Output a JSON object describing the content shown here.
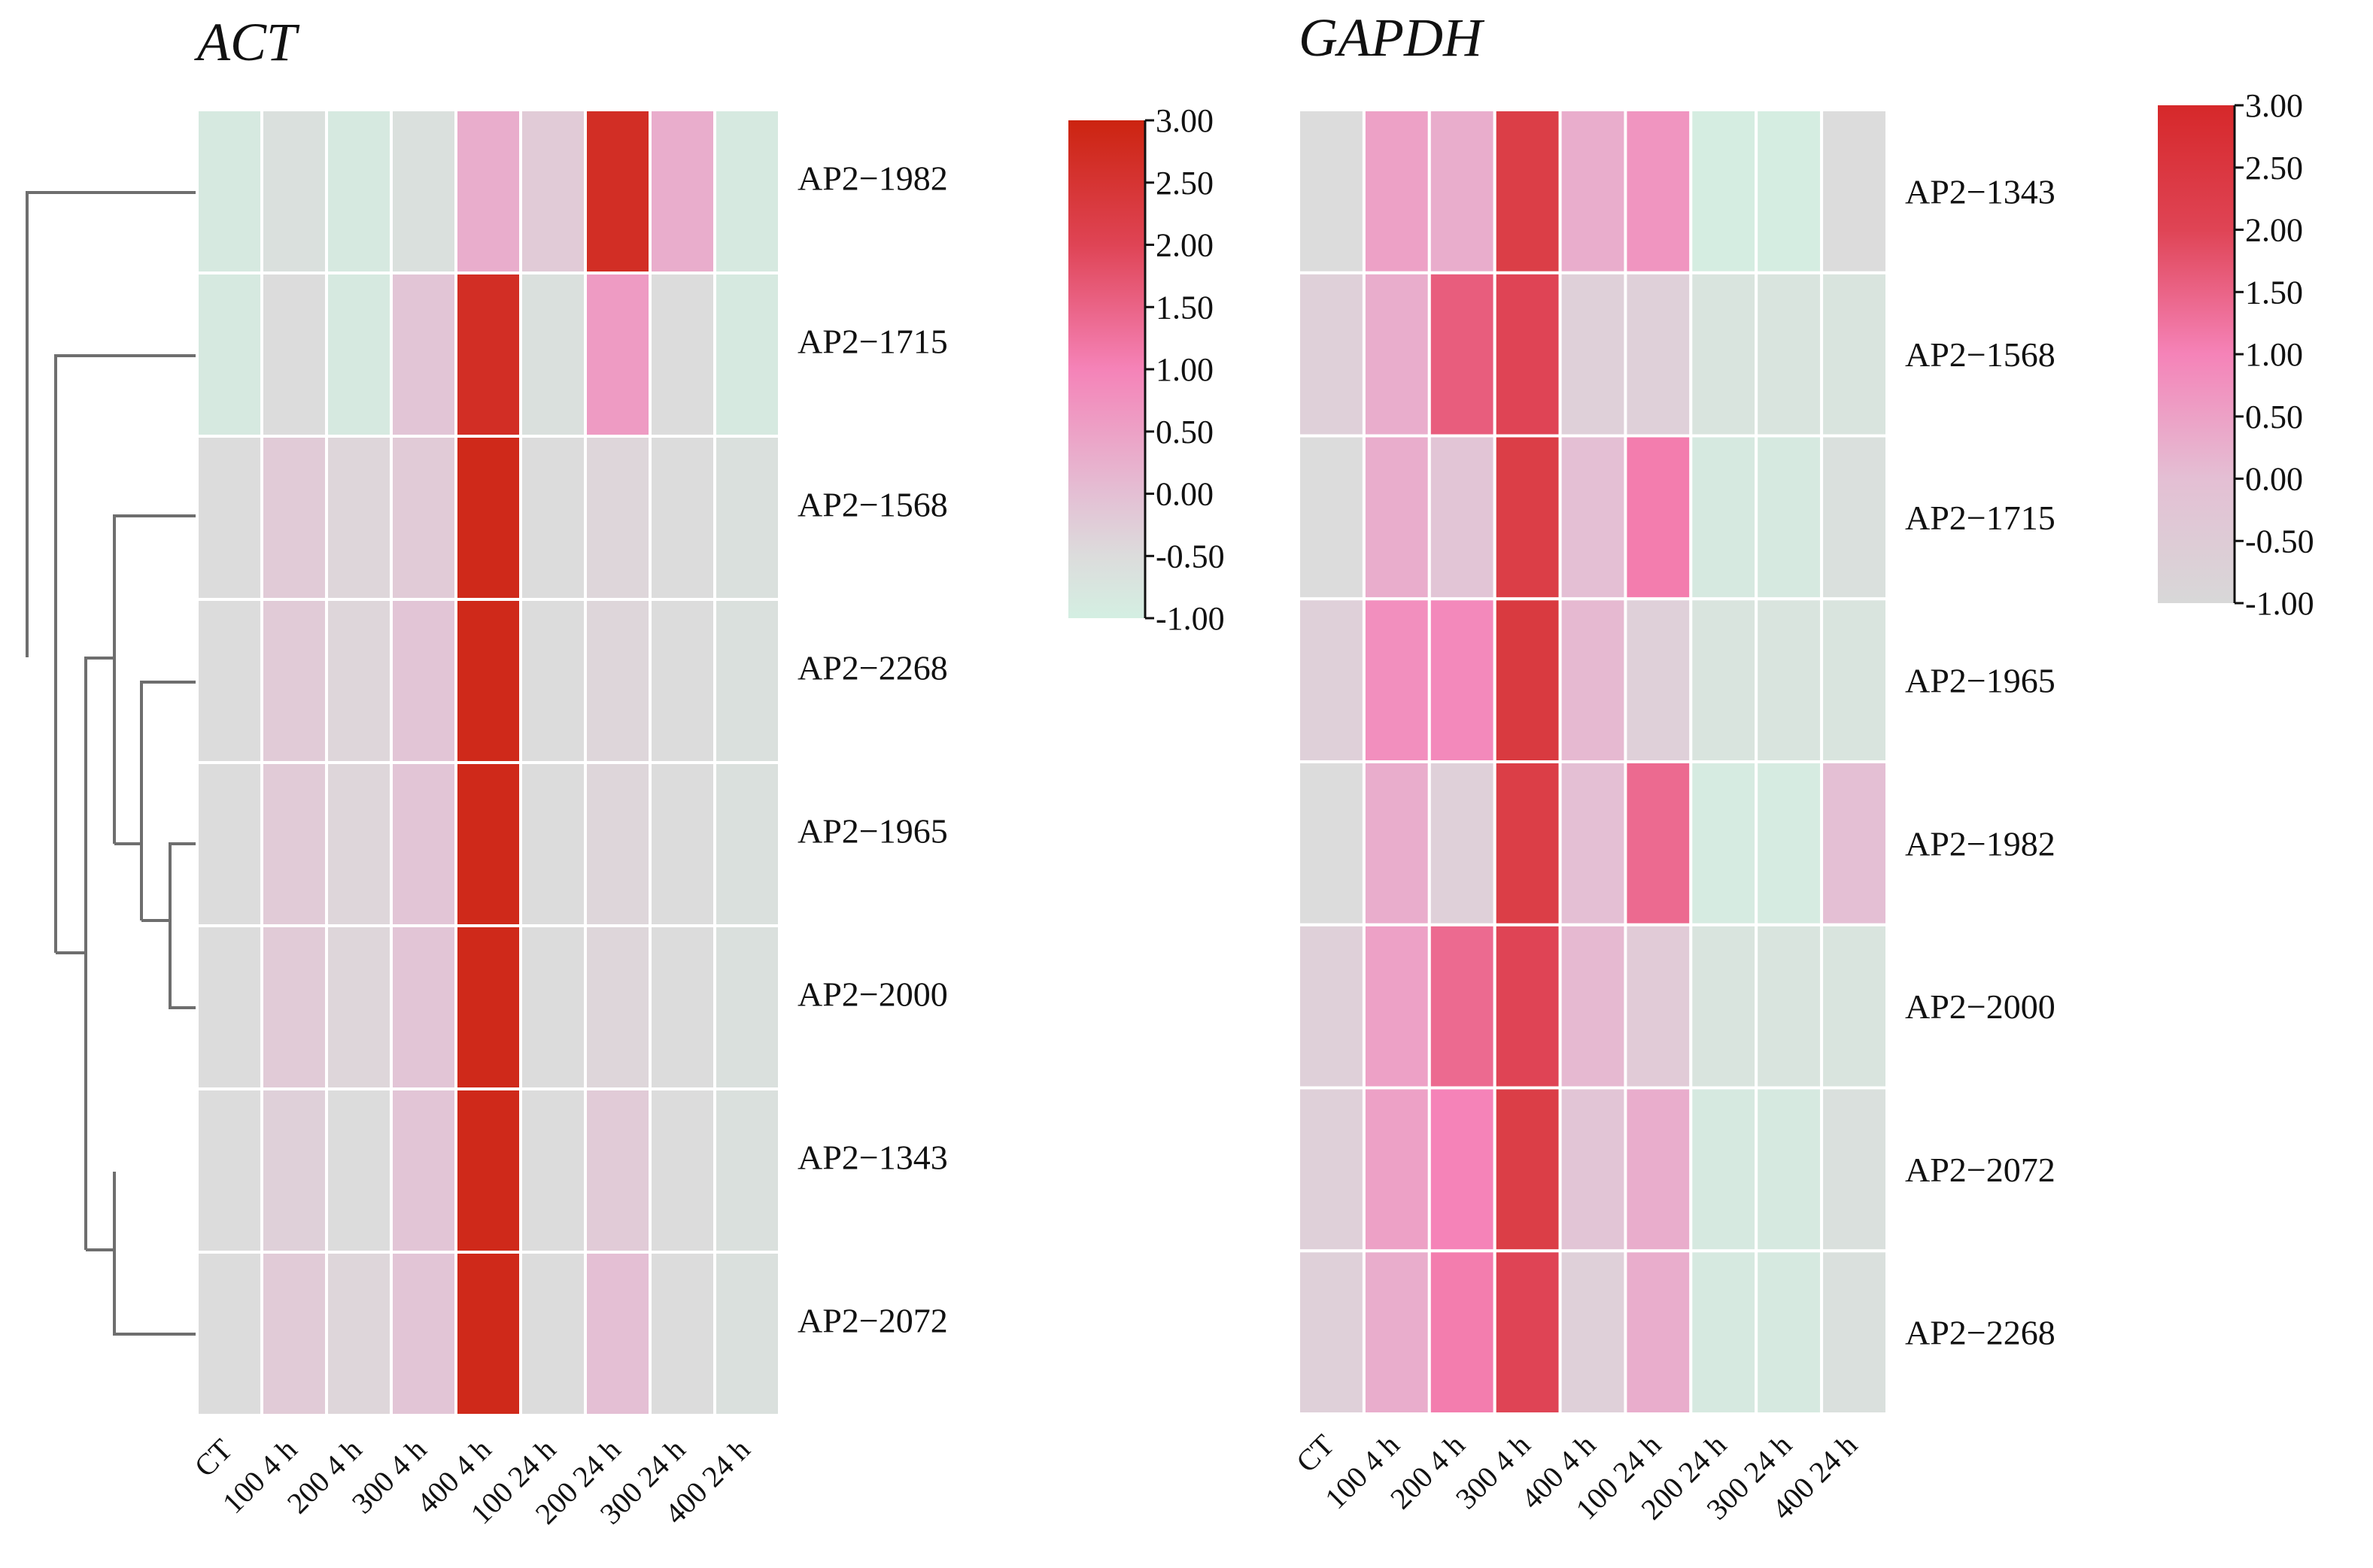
{
  "chart_data": [
    {
      "type": "heatmap",
      "title": "ACT",
      "columns": [
        "CT",
        "100 4 h",
        "200 4 h",
        "300 4 h",
        "400 4 h",
        "100 24 h",
        "200 24 h",
        "300 24 h",
        "400 24 h"
      ],
      "rows": [
        "AP2−1982",
        "AP2−1715",
        "AP2−1568",
        "AP2−2268",
        "AP2−1965",
        "AP2−2000",
        "AP2−1343",
        "AP2−2072"
      ],
      "values": [
        [
          -0.85,
          -0.6,
          -0.85,
          -0.6,
          0.3,
          -0.2,
          2.7,
          0.3,
          -0.85
        ],
        [
          -0.85,
          -0.5,
          -0.85,
          -0.1,
          2.7,
          -0.6,
          0.6,
          -0.5,
          -0.85
        ],
        [
          -0.5,
          -0.2,
          -0.4,
          -0.2,
          2.85,
          -0.5,
          -0.4,
          -0.5,
          -0.6
        ],
        [
          -0.5,
          -0.2,
          -0.4,
          -0.1,
          2.85,
          -0.5,
          -0.4,
          -0.5,
          -0.6
        ],
        [
          -0.5,
          -0.2,
          -0.4,
          -0.1,
          2.85,
          -0.5,
          -0.4,
          -0.5,
          -0.6
        ],
        [
          -0.5,
          -0.2,
          -0.4,
          -0.1,
          2.85,
          -0.5,
          -0.4,
          -0.5,
          -0.6
        ],
        [
          -0.5,
          -0.3,
          -0.5,
          -0.1,
          2.85,
          -0.5,
          -0.2,
          -0.5,
          -0.6
        ],
        [
          -0.5,
          -0.2,
          -0.4,
          -0.1,
          2.85,
          -0.5,
          0.0,
          -0.5,
          -0.6
        ]
      ],
      "colorbar": {
        "min": -1.0,
        "max": 3.0,
        "ticks": [
          "3.00",
          "2.50",
          "2.00",
          "1.50",
          "1.00",
          "0.50",
          "0.00",
          "-0.50",
          "-1.00"
        ]
      },
      "dendrogram": "rows"
    },
    {
      "type": "heatmap",
      "title": "GAPDH",
      "columns": [
        "CT",
        "100 4 h",
        "200 4 h",
        "300 4 h",
        "400 4 h",
        "100 24 h",
        "200 24 h",
        "300 24 h",
        "400 24 h"
      ],
      "rows": [
        "AP2−1343",
        "AP2−1568",
        "AP2−1715",
        "AP2−1965",
        "AP2−1982",
        "AP2−2000",
        "AP2−2072",
        "AP2−2268"
      ],
      "values": [
        [
          -0.5,
          0.5,
          0.3,
          2.2,
          0.3,
          0.7,
          -0.95,
          -0.95,
          -0.5
        ],
        [
          -0.3,
          0.3,
          1.6,
          2.0,
          -0.3,
          -0.3,
          -0.7,
          -0.7,
          -0.7
        ],
        [
          -0.5,
          0.3,
          -0.1,
          2.2,
          0.0,
          1.1,
          -0.85,
          -0.85,
          -0.6
        ],
        [
          -0.3,
          0.8,
          0.9,
          2.3,
          0.1,
          -0.3,
          -0.7,
          -0.7,
          -0.7
        ],
        [
          -0.5,
          0.3,
          -0.3,
          2.2,
          0.0,
          1.4,
          -0.9,
          -0.9,
          0.0
        ],
        [
          -0.3,
          0.5,
          1.4,
          2.0,
          0.1,
          -0.2,
          -0.7,
          -0.7,
          -0.7
        ],
        [
          -0.3,
          0.5,
          1.0,
          2.2,
          -0.1,
          0.3,
          -0.85,
          -0.85,
          -0.6
        ],
        [
          -0.3,
          0.3,
          1.1,
          2.0,
          -0.3,
          0.3,
          -0.85,
          -0.85,
          -0.6
        ]
      ],
      "colorbar": {
        "min": -1.0,
        "max": 3.0,
        "ticks": [
          "3.00",
          "2.50",
          "2.00",
          "1.50",
          "1.00",
          "0.50",
          "0.00",
          "-0.50",
          "-1.00"
        ]
      }
    }
  ]
}
